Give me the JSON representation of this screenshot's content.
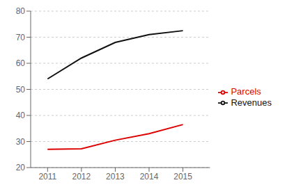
{
  "chart_data": {
    "type": "line",
    "x": [
      2011,
      2012,
      2013,
      2014,
      2015
    ],
    "series": [
      {
        "name": "Parcels",
        "color": "#dd0000",
        "values": [
          27,
          27.2,
          30.5,
          33,
          36.5
        ]
      },
      {
        "name": "Revenues",
        "color": "#111111",
        "values": [
          54,
          62,
          68,
          71,
          72.5
        ]
      }
    ],
    "xlim": [
      2010.5,
      2015.8
    ],
    "xticks": [
      2011,
      2012,
      2013,
      2014,
      2015
    ],
    "ylim": [
      20,
      80
    ],
    "yticks": [
      20,
      30,
      40,
      50,
      60,
      70,
      80
    ],
    "grid": true,
    "legend": "right"
  }
}
